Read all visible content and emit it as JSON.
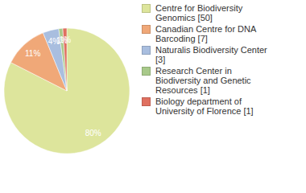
{
  "chart_data": {
    "type": "pie",
    "categories": [
      "Centre for Biodiversity Genomics [50]",
      "Canadian Centre for DNA Barcoding [7]",
      "Naturalis Biodiversity Center [3]",
      "Research Center in Biodiversity and Genetic Resources [1]",
      "Biology department of University of Florence [1]"
    ],
    "values": [
      80,
      11,
      4,
      1,
      1
    ],
    "value_labels": [
      "80%",
      "11%",
      "4%",
      "1%",
      "1%"
    ],
    "data_labels": true,
    "colors": [
      "#dde59c",
      "#f0a878",
      "#a9bedf",
      "#a8c98a",
      "#e07060"
    ],
    "legend": "right"
  }
}
